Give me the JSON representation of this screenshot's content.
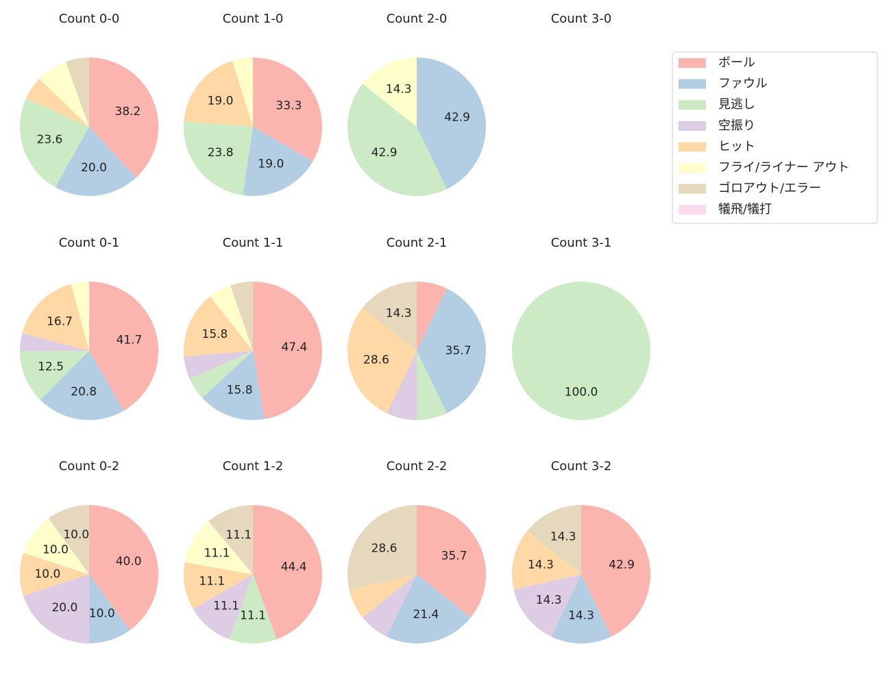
{
  "legend": {
    "labels": [
      "ボール",
      "ファウル",
      "見逃し",
      "空振り",
      "ヒット",
      "フライ/ライナー アウト",
      "ゴロアウト/エラー",
      "犠飛/犠打"
    ],
    "colors": [
      "#fbb4ae",
      "#b3cde3",
      "#ccebc5",
      "#decbe4",
      "#fed9a6",
      "#ffffcc",
      "#e5d8bd",
      "#fddaec"
    ]
  },
  "chart_data": [
    {
      "type": "pie",
      "title": "Count 0-0",
      "values": [
        38.2,
        20.0,
        23.6,
        0,
        5.5,
        7.3,
        5.5,
        0
      ],
      "value_labels": [
        "38.2",
        "20.0",
        "23.6",
        null,
        null,
        null,
        null,
        null
      ]
    },
    {
      "type": "pie",
      "title": "Count 1-0",
      "values": [
        33.3,
        19.0,
        23.8,
        0,
        19.0,
        4.8,
        0,
        0
      ],
      "value_labels": [
        "33.3",
        "19.0",
        "23.8",
        null,
        "19.0",
        null,
        null,
        null
      ]
    },
    {
      "type": "pie",
      "title": "Count 2-0",
      "values": [
        0,
        42.9,
        42.9,
        0,
        0,
        14.3,
        0,
        0
      ],
      "value_labels": [
        null,
        "42.9",
        "42.9",
        null,
        null,
        "14.3",
        null,
        null
      ]
    },
    {
      "type": "pie",
      "title": "Count 3-0",
      "values": [],
      "value_labels": []
    },
    {
      "type": "pie",
      "title": "Count 0-1",
      "values": [
        41.7,
        20.8,
        12.5,
        4.2,
        16.7,
        4.2,
        0,
        0
      ],
      "value_labels": [
        "41.7",
        "20.8",
        "12.5",
        null,
        "16.7",
        null,
        null,
        null
      ]
    },
    {
      "type": "pie",
      "title": "Count 1-1",
      "values": [
        47.4,
        15.8,
        5.3,
        5.3,
        15.8,
        5.3,
        5.3,
        0
      ],
      "value_labels": [
        "47.4",
        "15.8",
        null,
        null,
        "15.8",
        null,
        null,
        null
      ]
    },
    {
      "type": "pie",
      "title": "Count 2-1",
      "values": [
        7.1,
        35.7,
        7.1,
        7.1,
        28.6,
        0,
        14.3,
        0
      ],
      "value_labels": [
        null,
        "35.7",
        null,
        null,
        "28.6",
        null,
        "14.3",
        null
      ]
    },
    {
      "type": "pie",
      "title": "Count 3-1",
      "values": [
        0,
        0,
        100,
        0,
        0,
        0,
        0,
        0
      ],
      "value_labels": [
        null,
        null,
        "100.0",
        null,
        null,
        null,
        null,
        null
      ]
    },
    {
      "type": "pie",
      "title": "Count 0-2",
      "values": [
        40,
        10,
        0,
        20,
        10,
        10,
        10,
        0
      ],
      "value_labels": [
        "40.0",
        "10.0",
        null,
        "20.0",
        "10.0",
        "10.0",
        "10.0",
        null
      ]
    },
    {
      "type": "pie",
      "title": "Count 1-2",
      "values": [
        44.4,
        0,
        11.1,
        11.1,
        11.1,
        11.1,
        11.1,
        0
      ],
      "value_labels": [
        "44.4",
        null,
        "11.1",
        "11.1",
        "11.1",
        "11.1",
        "11.1",
        null
      ]
    },
    {
      "type": "pie",
      "title": "Count 2-2",
      "values": [
        35.7,
        21.4,
        0,
        7.1,
        7.1,
        0,
        28.6,
        0
      ],
      "value_labels": [
        "35.7",
        "21.4",
        null,
        null,
        null,
        null,
        "28.6",
        null
      ]
    },
    {
      "type": "pie",
      "title": "Count 3-2",
      "values": [
        42.9,
        14.3,
        0,
        14.3,
        14.3,
        0,
        14.3,
        0
      ],
      "value_labels": [
        "42.9",
        "14.3",
        null,
        "14.3",
        "14.3",
        null,
        "14.3",
        null
      ]
    }
  ]
}
